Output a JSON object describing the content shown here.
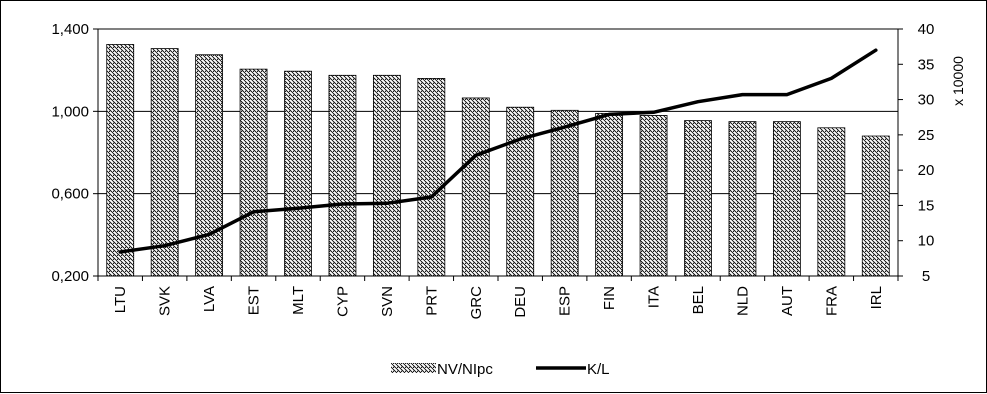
{
  "chart_data": {
    "type": "bar",
    "categories": [
      "LTU",
      "SVK",
      "LVA",
      "EST",
      "MLT",
      "CYP",
      "SVN",
      "PRT",
      "GRC",
      "DEU",
      "ESP",
      "FIN",
      "ITA",
      "BEL",
      "NLD",
      "AUT",
      "FRA",
      "IRL"
    ],
    "series": [
      {
        "name": "NV/NIpc",
        "type": "bar",
        "axis": "left",
        "values": [
          1.325,
          1.305,
          1.275,
          1.205,
          1.195,
          1.175,
          1.175,
          1.16,
          1.065,
          1.02,
          1.005,
          0.99,
          0.98,
          0.955,
          0.95,
          0.95,
          0.92,
          0.88
        ]
      },
      {
        "name": "K/L",
        "type": "line",
        "axis": "right",
        "values": [
          8.4,
          9.3,
          10.9,
          14.1,
          14.6,
          15.2,
          15.3,
          16.2,
          22.1,
          24.4,
          26.1,
          27.9,
          28.2,
          29.7,
          30.7,
          30.7,
          33.0,
          37.0
        ]
      }
    ],
    "y_left": {
      "ylim": [
        0.2,
        1.4
      ],
      "ticks": [
        0.2,
        0.6,
        1.0,
        1.4
      ],
      "tick_labels": [
        "0,200",
        "0,600",
        "1,000",
        "1,400"
      ]
    },
    "y_right": {
      "label": "x 10000",
      "ylim": [
        5,
        40
      ],
      "ticks": [
        5,
        10,
        15,
        20,
        25,
        30,
        35,
        40
      ],
      "tick_labels": [
        "5",
        "10",
        "15",
        "20",
        "25",
        "30",
        "35",
        "40"
      ]
    },
    "grid": true,
    "legend": {
      "position": "bottom",
      "entries": [
        "NV/NIpc",
        "K/L"
      ]
    },
    "colors": {
      "line": "#000000",
      "bar_hatch": "#000000",
      "bar_fill": "#ffffff"
    }
  }
}
